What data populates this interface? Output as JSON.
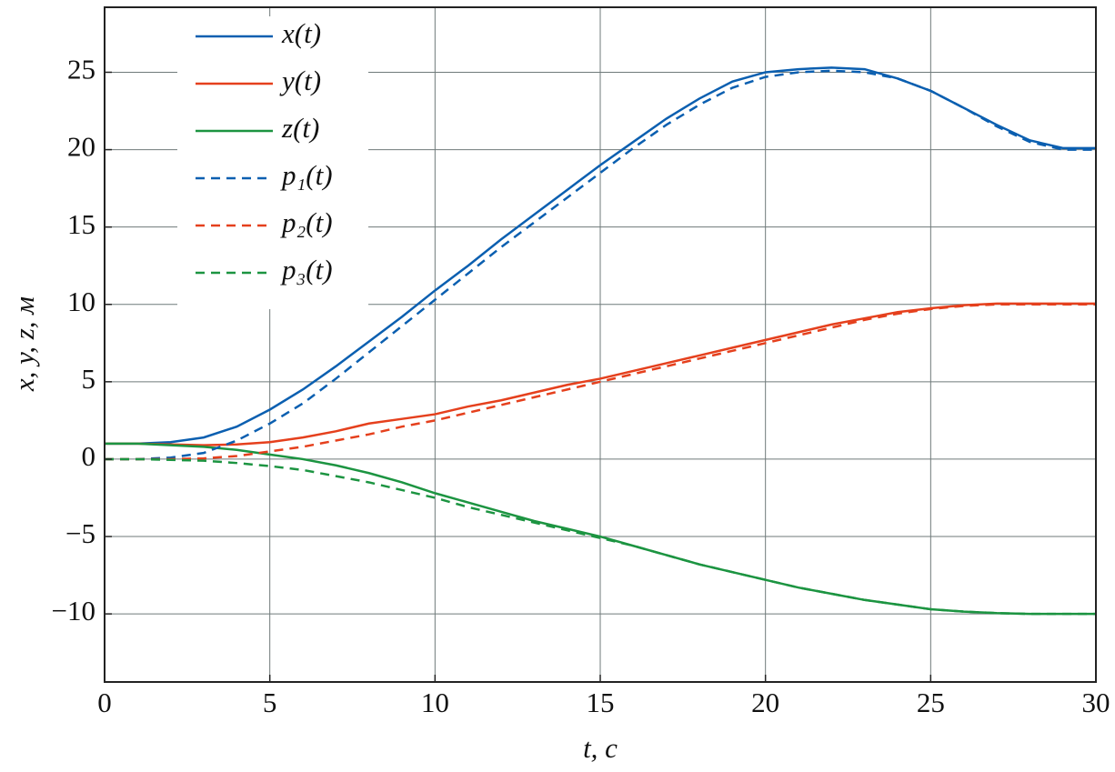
{
  "chart_data": {
    "type": "line",
    "xlabel": "t, с",
    "ylabel": "x, y, z, м",
    "x": [
      0,
      1,
      2,
      3,
      4,
      5,
      6,
      7,
      8,
      9,
      10,
      11,
      12,
      13,
      14,
      15,
      16,
      17,
      18,
      19,
      20,
      21,
      22,
      23,
      24,
      25,
      26,
      27,
      28,
      29,
      30
    ],
    "series": [
      {
        "name": "x(t)",
        "color": "#0b5fb0",
        "dashed": false,
        "values": [
          1,
          1,
          1.1,
          1.4,
          2.1,
          3.2,
          4.5,
          6,
          7.6,
          9.2,
          10.9,
          12.5,
          14.2,
          15.8,
          17.4,
          19,
          20.5,
          22,
          23.3,
          24.4,
          25,
          25.2,
          25.3,
          25.2,
          24.6,
          23.8,
          22.7,
          21.6,
          20.6,
          20.1,
          20.1
        ]
      },
      {
        "name": "y(t)",
        "color": "#e5401d",
        "dashed": false,
        "values": [
          1,
          1,
          0.95,
          0.9,
          0.95,
          1.1,
          1.4,
          1.8,
          2.3,
          2.6,
          2.9,
          3.4,
          3.8,
          4.3,
          4.8,
          5.2,
          5.7,
          6.2,
          6.7,
          7.2,
          7.7,
          8.2,
          8.7,
          9.1,
          9.5,
          9.75,
          9.95,
          10.05,
          10.05,
          10.05,
          10.05
        ]
      },
      {
        "name": "z(t)",
        "color": "#1c9441",
        "dashed": false,
        "values": [
          1,
          1,
          0.9,
          0.8,
          0.6,
          0.3,
          0,
          -0.4,
          -0.9,
          -1.5,
          -2.2,
          -2.8,
          -3.4,
          -4,
          -4.5,
          -5,
          -5.6,
          -6.2,
          -6.8,
          -7.3,
          -7.8,
          -8.3,
          -8.7,
          -9.1,
          -9.4,
          -9.7,
          -9.85,
          -9.95,
          -10,
          -10,
          -10
        ]
      },
      {
        "name": "p₁(t)",
        "color": "#0b5fb0",
        "dashed": true,
        "values": [
          0,
          0,
          0.1,
          0.4,
          1.2,
          2.3,
          3.6,
          5.2,
          6.9,
          8.6,
          10.3,
          12,
          13.7,
          15.3,
          16.9,
          18.5,
          20.1,
          21.6,
          22.9,
          24,
          24.7,
          25,
          25.1,
          25,
          24.6,
          23.8,
          22.7,
          21.5,
          20.5,
          20,
          20
        ]
      },
      {
        "name": "p₂(t)",
        "color": "#e5401d",
        "dashed": true,
        "values": [
          0,
          0,
          0,
          0.05,
          0.2,
          0.5,
          0.8,
          1.2,
          1.6,
          2.1,
          2.5,
          3,
          3.5,
          4,
          4.5,
          5,
          5.5,
          6,
          6.5,
          7,
          7.5,
          8,
          8.5,
          9,
          9.4,
          9.7,
          9.9,
          10,
          10,
          10,
          10
        ]
      },
      {
        "name": "p₃(t)",
        "color": "#1c9441",
        "dashed": true,
        "values": [
          0,
          0,
          -0.05,
          -0.1,
          -0.25,
          -0.45,
          -0.7,
          -1.1,
          -1.5,
          -2,
          -2.5,
          -3.1,
          -3.6,
          -4.1,
          -4.6,
          -5.1,
          -5.6,
          -6.2,
          -6.8,
          -7.3,
          -7.8,
          -8.3,
          -8.7,
          -9.1,
          -9.4,
          -9.7,
          -9.85,
          -9.95,
          -10,
          -10,
          -10
        ]
      }
    ],
    "xlim": [
      0,
      30
    ],
    "ylim": [
      -14.4,
      29.2
    ],
    "xticks": [
      0,
      5,
      10,
      15,
      20,
      25,
      30
    ],
    "yticks": [
      {
        "value": -10,
        "label": "−10"
      },
      {
        "value": -5,
        "label": "−5"
      },
      0,
      5,
      10,
      15,
      20,
      25
    ],
    "grid": true,
    "legend": "upper left"
  }
}
